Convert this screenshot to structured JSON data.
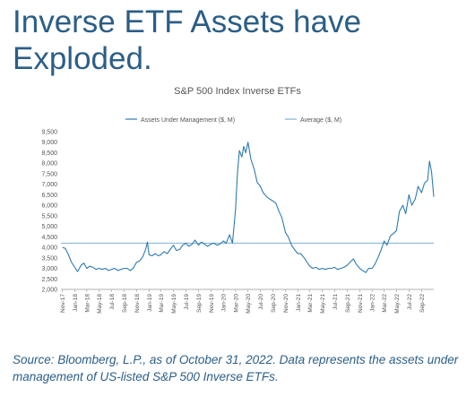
{
  "headline": "Inverse ETF Assets have Exploded.",
  "caption": "Source: Bloomberg, L.P., as of October 31, 2022. Data represents the assets under management of US-listed S&P 500 Inverse ETFs.",
  "colors": {
    "headline": "#2b5e87",
    "line": "#2e7bb0",
    "average": "#7fb0d4",
    "axis": "#999999"
  },
  "chart_data": {
    "type": "line",
    "title": "S&P 500 Index Inverse ETFs",
    "legend_position": "top",
    "grid": false,
    "ylim": [
      2000,
      9500
    ],
    "y_ticks": [
      "9,500",
      "9,000",
      "8,500",
      "8,000",
      "7,500",
      "7,000",
      "6,500",
      "6,000",
      "5,500",
      "5,000",
      "4,500",
      "4,000",
      "3,500",
      "3,000",
      "2,500",
      "2,000"
    ],
    "x_ticks": [
      "Nov-17",
      "Jan-18",
      "Mar-18",
      "May-18",
      "Jul-18",
      "Sep-18",
      "Nov-18",
      "Jan-19",
      "Mar-19",
      "May-19",
      "Jul-19",
      "Sep-19",
      "Nov-19",
      "Jan-20",
      "Mar-20",
      "May-20",
      "Jul-20",
      "Sep-20",
      "Nov-20",
      "Jan-21",
      "Mar-21",
      "May-21",
      "Jul-21",
      "Sep-21",
      "Nov-21",
      "Jan-22",
      "Mar-22",
      "May-22",
      "Jul-22",
      "Sep-22"
    ],
    "series": [
      {
        "name": "Assets Under Management ($, M)",
        "x": [
          "2017-11-01",
          "2017-11-15",
          "2017-12-01",
          "2017-12-15",
          "2018-01-01",
          "2018-01-15",
          "2018-02-01",
          "2018-02-15",
          "2018-03-01",
          "2018-03-15",
          "2018-04-01",
          "2018-04-15",
          "2018-05-01",
          "2018-05-15",
          "2018-06-01",
          "2018-06-15",
          "2018-07-01",
          "2018-07-15",
          "2018-08-01",
          "2018-08-15",
          "2018-09-01",
          "2018-09-15",
          "2018-10-01",
          "2018-10-15",
          "2018-11-01",
          "2018-11-15",
          "2018-12-01",
          "2018-12-15",
          "2018-12-24",
          "2019-01-01",
          "2019-01-15",
          "2019-02-01",
          "2019-02-15",
          "2019-03-01",
          "2019-03-15",
          "2019-04-01",
          "2019-04-15",
          "2019-05-01",
          "2019-05-15",
          "2019-06-01",
          "2019-06-15",
          "2019-07-01",
          "2019-07-15",
          "2019-08-01",
          "2019-08-15",
          "2019-09-01",
          "2019-09-15",
          "2019-10-01",
          "2019-10-15",
          "2019-11-01",
          "2019-11-15",
          "2019-12-01",
          "2019-12-15",
          "2020-01-01",
          "2020-01-15",
          "2020-02-01",
          "2020-02-15",
          "2020-03-01",
          "2020-03-10",
          "2020-03-20",
          "2020-04-01",
          "2020-04-10",
          "2020-04-20",
          "2020-05-01",
          "2020-05-15",
          "2020-06-01",
          "2020-06-15",
          "2020-07-01",
          "2020-07-15",
          "2020-08-01",
          "2020-08-15",
          "2020-09-01",
          "2020-09-15",
          "2020-10-01",
          "2020-10-15",
          "2020-11-01",
          "2020-11-15",
          "2020-12-01",
          "2020-12-15",
          "2021-01-01",
          "2021-01-15",
          "2021-02-01",
          "2021-02-15",
          "2021-03-01",
          "2021-03-15",
          "2021-04-01",
          "2021-04-15",
          "2021-05-01",
          "2021-05-15",
          "2021-06-01",
          "2021-06-15",
          "2021-07-01",
          "2021-07-15",
          "2021-08-01",
          "2021-08-15",
          "2021-09-01",
          "2021-09-15",
          "2021-10-01",
          "2021-10-15",
          "2021-11-01",
          "2021-11-15",
          "2021-12-01",
          "2021-12-15",
          "2022-01-01",
          "2022-01-15",
          "2022-02-01",
          "2022-02-15",
          "2022-03-01",
          "2022-03-15",
          "2022-04-01",
          "2022-04-15",
          "2022-05-01",
          "2022-05-15",
          "2022-06-01",
          "2022-06-15",
          "2022-07-01",
          "2022-07-15",
          "2022-08-01",
          "2022-08-15",
          "2022-09-01",
          "2022-09-15",
          "2022-10-01",
          "2022-10-10",
          "2022-10-20",
          "2022-10-31"
        ],
        "y": [
          4000,
          3950,
          3650,
          3300,
          3050,
          2850,
          3150,
          3250,
          3000,
          3100,
          3050,
          2950,
          3000,
          2950,
          3000,
          2900,
          2950,
          3000,
          2900,
          2950,
          3000,
          3000,
          2900,
          3000,
          3300,
          3350,
          3550,
          3900,
          4250,
          3650,
          3600,
          3700,
          3600,
          3650,
          3800,
          3700,
          3900,
          4100,
          3850,
          3900,
          4100,
          4200,
          4050,
          4150,
          4350,
          4100,
          4250,
          4150,
          4050,
          4150,
          4200,
          4100,
          4150,
          4300,
          4200,
          4600,
          4200,
          5800,
          7500,
          8600,
          8300,
          8800,
          8500,
          9000,
          8200,
          7700,
          7100,
          6900,
          6600,
          6400,
          6300,
          6200,
          6100,
          5700,
          5400,
          4700,
          4500,
          4100,
          3900,
          3700,
          3700,
          3500,
          3300,
          3100,
          3000,
          3050,
          2950,
          3000,
          2950,
          3000,
          3000,
          3050,
          2950,
          3000,
          3050,
          3150,
          3300,
          3450,
          3200,
          3000,
          2900,
          2800,
          3000,
          3000,
          3200,
          3550,
          3900,
          4300,
          4100,
          4550,
          4650,
          4800,
          5700,
          6000,
          5600,
          6500,
          6000,
          6300,
          6900,
          6600,
          7050,
          7200,
          8100,
          7600,
          6400
        ]
      },
      {
        "name": "Average ($, M)",
        "value": 4200
      }
    ]
  }
}
